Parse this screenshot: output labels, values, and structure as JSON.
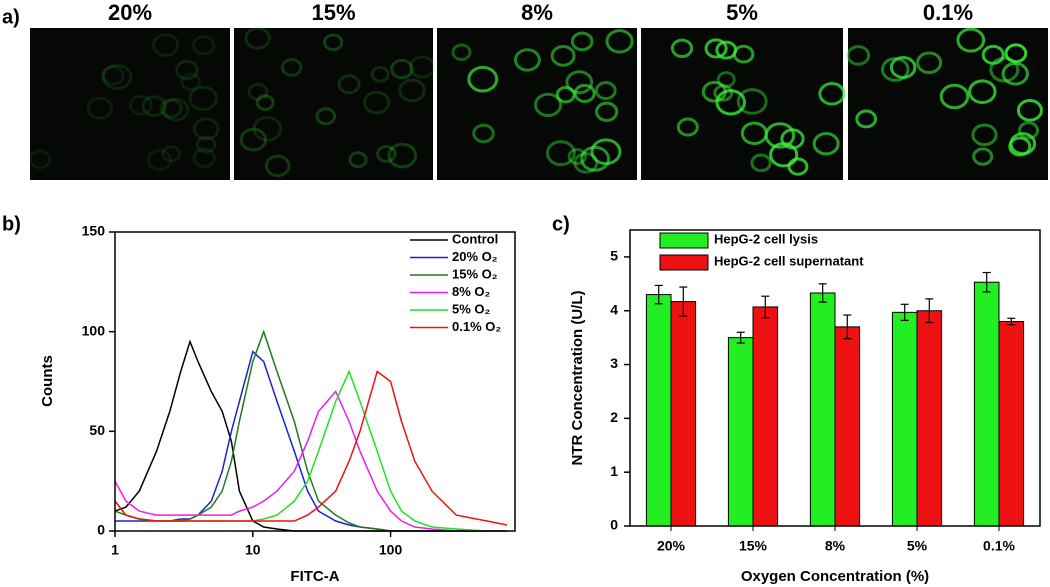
{
  "panel_a": {
    "label": "a)",
    "titles": [
      "20%",
      "15%",
      "8%",
      "5%",
      "0.1%"
    ]
  },
  "chart_data": [
    {
      "type": "line",
      "label": "b)",
      "xlabel": "FITC-A",
      "ylabel": "Counts",
      "log_x": true,
      "legend": "upper right",
      "x": [
        1,
        1.2,
        1.5,
        2,
        2.5,
        3,
        3.5,
        4,
        5,
        6,
        7,
        8,
        10,
        12,
        15,
        20,
        25,
        30,
        40,
        50,
        60,
        80,
        100,
        120,
        150,
        200,
        300,
        500,
        700
      ],
      "xlim": [
        1,
        800
      ],
      "xticks": [
        1,
        10,
        100
      ],
      "ylim": [
        0,
        150
      ],
      "yticks": [
        0,
        50,
        100,
        150
      ],
      "series": [
        {
          "name": "Control",
          "color": "#000000",
          "values": [
            10,
            12,
            20,
            40,
            60,
            80,
            95,
            85,
            70,
            60,
            45,
            20,
            5,
            2,
            1,
            0,
            0,
            0,
            0,
            0,
            0,
            0,
            0,
            0,
            0,
            0,
            0,
            0,
            0
          ]
        },
        {
          "name": "20% O₂",
          "color": "#1f1fd6",
          "values": [
            5,
            5,
            5,
            5,
            5,
            6,
            6,
            8,
            15,
            30,
            50,
            65,
            90,
            85,
            65,
            40,
            20,
            10,
            5,
            3,
            2,
            1,
            0,
            0,
            0,
            0,
            0,
            0,
            0
          ]
        },
        {
          "name": "15% O₂",
          "color": "#207a20",
          "values": [
            10,
            8,
            6,
            5,
            5,
            5,
            6,
            8,
            12,
            20,
            35,
            55,
            85,
            100,
            80,
            55,
            30,
            15,
            8,
            4,
            2,
            1,
            0,
            0,
            0,
            0,
            0,
            0,
            0
          ]
        },
        {
          "name": "8% O₂",
          "color": "#f01cf0",
          "values": [
            25,
            15,
            10,
            8,
            8,
            8,
            8,
            8,
            8,
            8,
            8,
            10,
            12,
            15,
            20,
            30,
            45,
            60,
            70,
            55,
            40,
            20,
            10,
            5,
            2,
            1,
            0,
            0,
            0
          ]
        },
        {
          "name": "5% O₂",
          "color": "#22e022",
          "values": [
            15,
            8,
            6,
            5,
            5,
            5,
            5,
            5,
            5,
            5,
            5,
            5,
            5,
            6,
            8,
            15,
            25,
            40,
            65,
            80,
            65,
            40,
            20,
            10,
            5,
            2,
            1,
            0,
            0
          ]
        },
        {
          "name": "0.1% O₂",
          "color": "#f01010",
          "values": [
            15,
            8,
            6,
            5,
            5,
            5,
            5,
            5,
            5,
            5,
            5,
            5,
            5,
            5,
            5,
            5,
            8,
            12,
            20,
            35,
            50,
            80,
            75,
            55,
            35,
            20,
            8,
            5,
            3
          ]
        }
      ]
    },
    {
      "type": "bar",
      "label": "c)",
      "xlabel": "Oxygen Concentration (%)",
      "ylabel": "NTR Concentration (U/L)",
      "legend": "upper left",
      "categories": [
        "20%",
        "15%",
        "8%",
        "5%",
        "0.1%"
      ],
      "ylim": [
        0,
        5.5
      ],
      "yticks": [
        0,
        1,
        2,
        3,
        4,
        5
      ],
      "series": [
        {
          "name": "HepG-2 cell lysis",
          "color": "#22ee22",
          "values": [
            4.3,
            3.5,
            4.33,
            3.97,
            4.53
          ],
          "errors": [
            0.17,
            0.1,
            0.17,
            0.15,
            0.18
          ]
        },
        {
          "name": "HepG-2 cell supernatant",
          "color": "#ee1111",
          "values": [
            4.17,
            4.07,
            3.7,
            4.0,
            3.8
          ],
          "errors": [
            0.27,
            0.2,
            0.22,
            0.22,
            0.06
          ]
        }
      ]
    }
  ]
}
